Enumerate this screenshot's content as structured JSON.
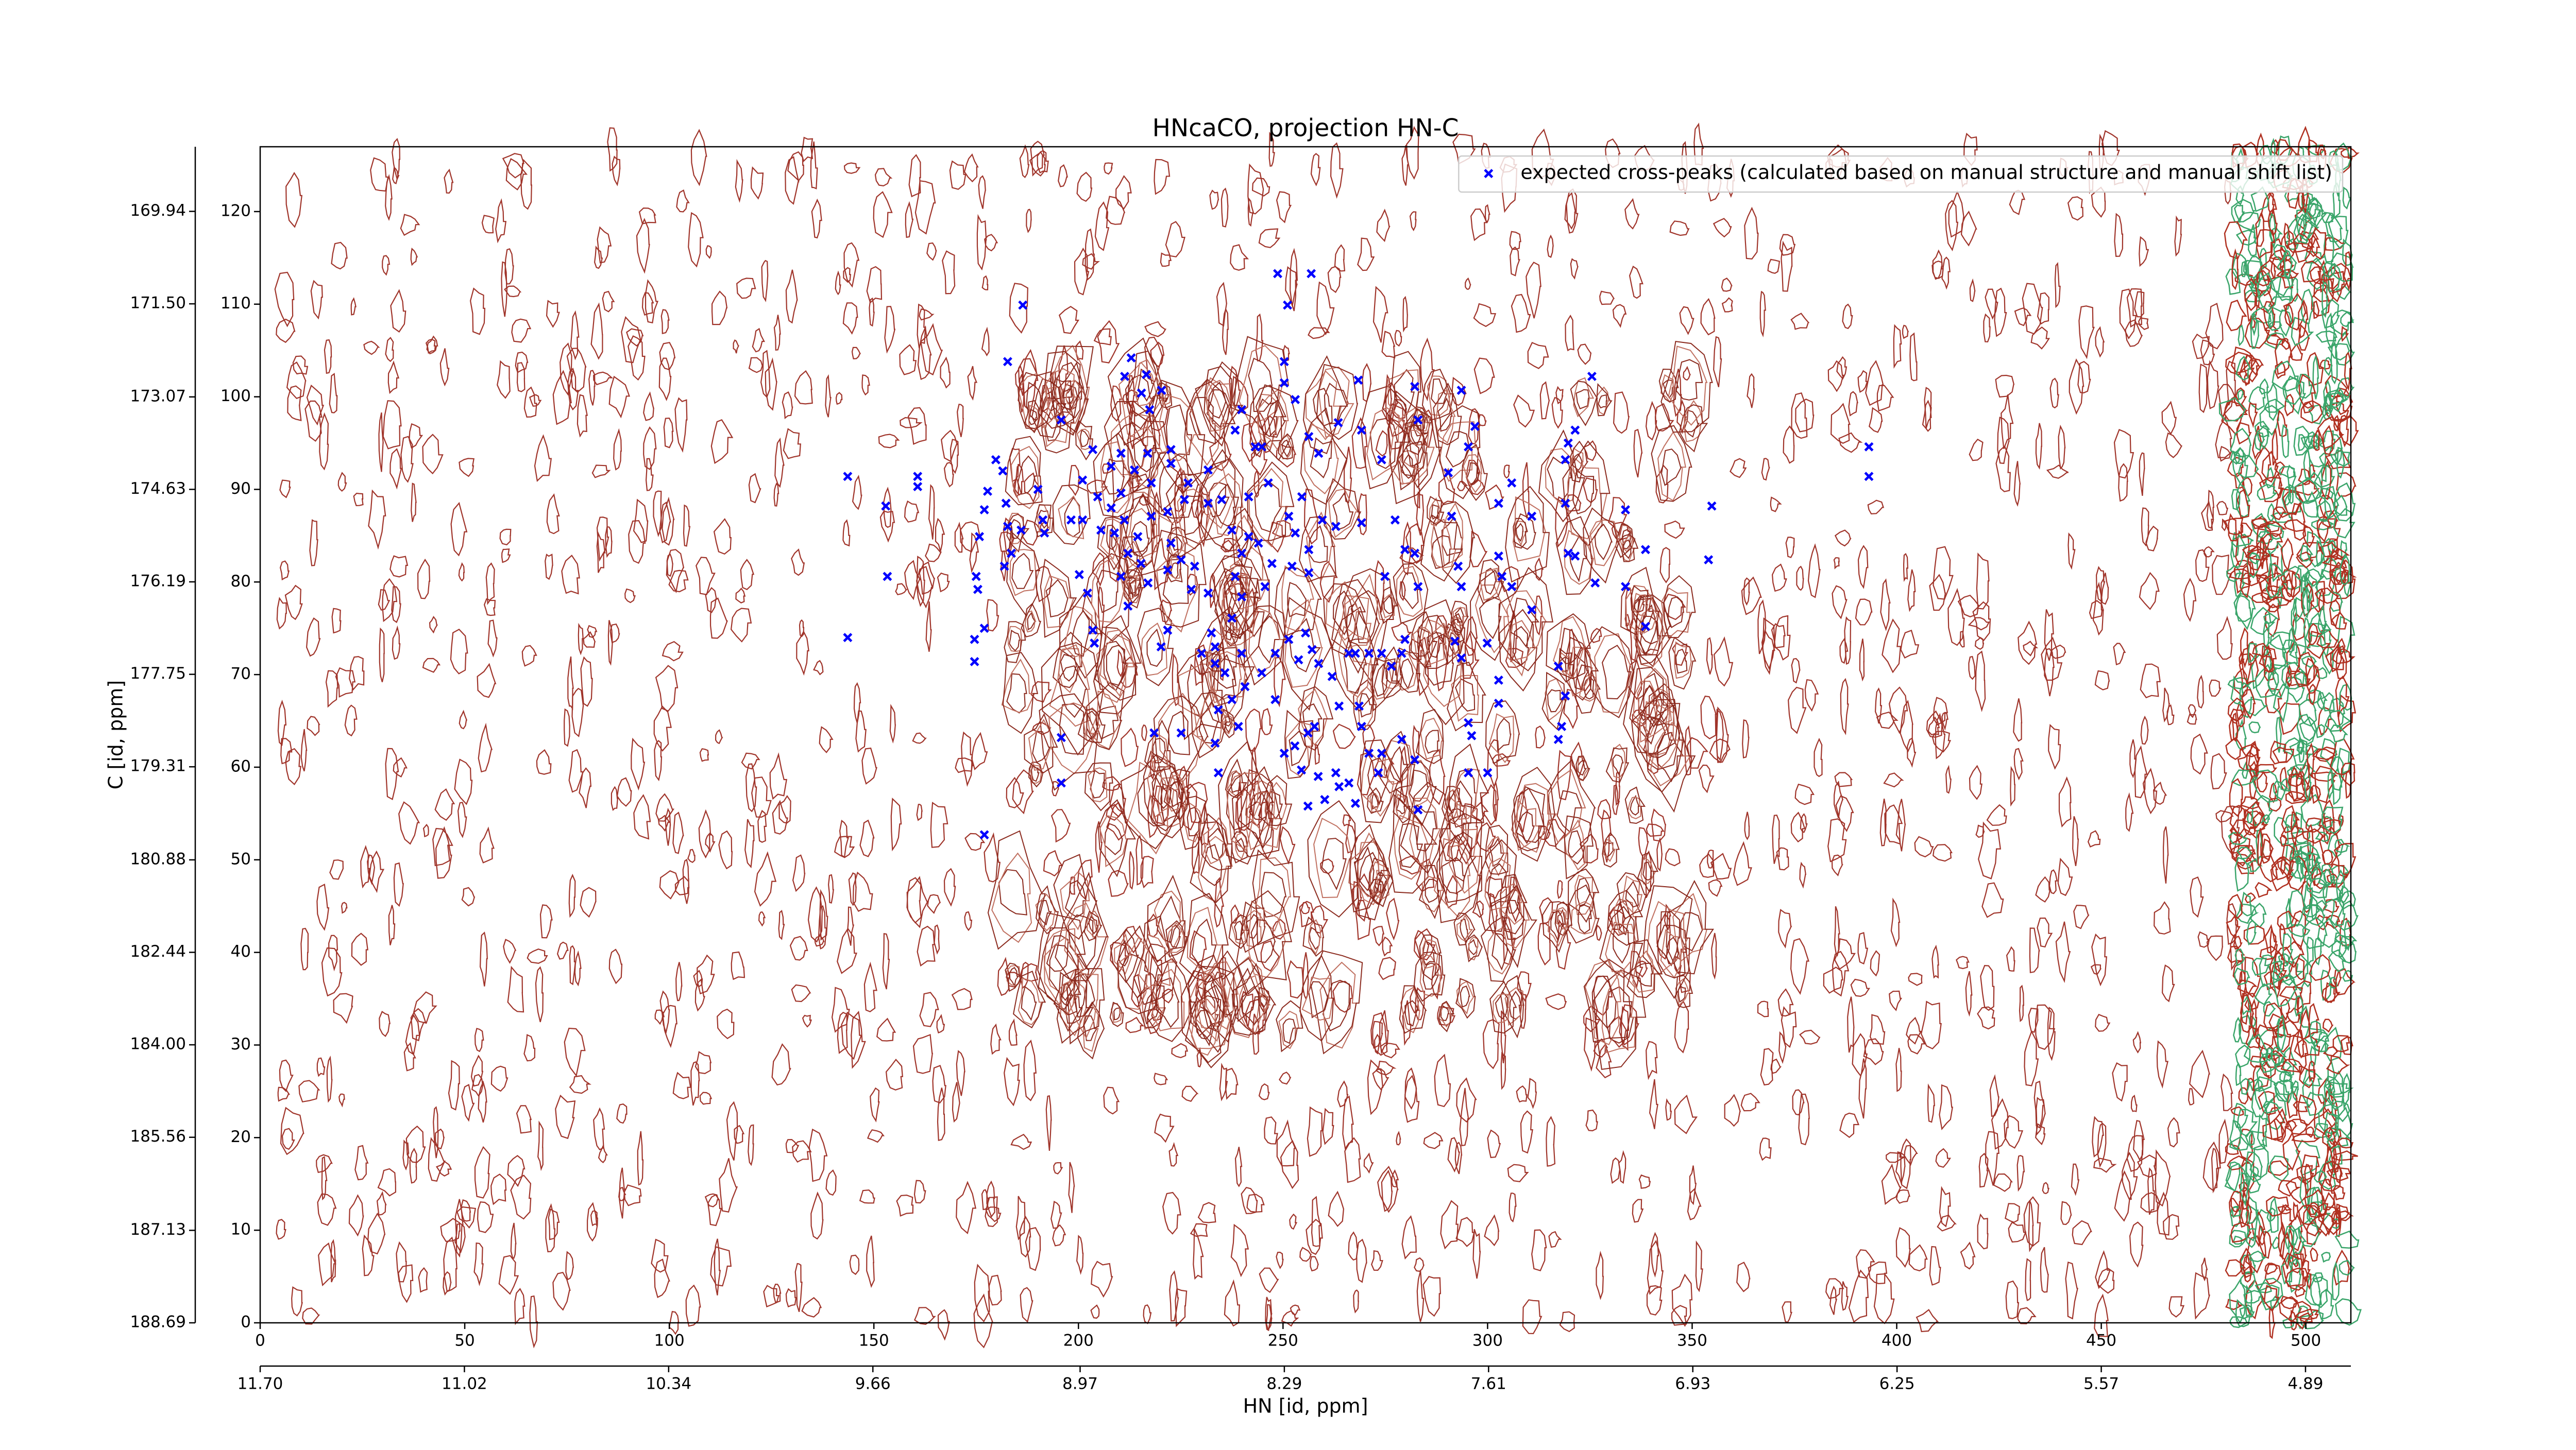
{
  "chart_data": {
    "type": "scatter",
    "title": "HNcaCO, projection HN-C",
    "x_label": "HN [id, ppm]",
    "y_label": "C [id, ppm]",
    "legend": "upper right",
    "xlim": [
      0,
      511
    ],
    "ylim": [
      0,
      127
    ],
    "xticks": [
      0,
      50,
      100,
      150,
      200,
      250,
      300,
      350,
      400,
      450,
      500
    ],
    "yticks": [
      0,
      10,
      20,
      30,
      40,
      50,
      60,
      70,
      80,
      90,
      100,
      110,
      120
    ],
    "x2lim": [
      11.7,
      4.739
    ],
    "x2ticks": [
      {
        "value": 11.7,
        "label": "11.70"
      },
      11.02,
      10.34,
      9.66,
      8.97,
      8.29,
      7.61,
      6.93,
      6.25,
      5.57,
      4.89
    ],
    "y2lim": [
      188.69,
      168.85
    ],
    "y2ticks": [
      188.69,
      187.13,
      185.56,
      {
        "value": 184,
        "label": "184.00"
      },
      182.44,
      180.88,
      179.31,
      177.75,
      176.19,
      174.63,
      173.07,
      {
        "value": 171.5,
        "label": "171.50"
      },
      169.94
    ],
    "x": [
      143.6,
      143.6,
      152.9,
      153.3,
      160.7,
      160.7,
      186.4,
      182.7,
      179.8,
      181.5,
      177.8,
      177,
      175.8,
      182.3,
      182.7,
      175,
      175.4,
      181.9,
      183.6,
      174.6,
      177,
      174.6,
      195.8,
      190.1,
      191.3,
      186,
      191.7,
      195.8,
      195.8,
      177,
      201,
      203.5,
      204.7,
      198.2,
      201,
      205.5,
      208,
      200.2,
      202.2,
      203.5,
      203.9,
      212.9,
      211.3,
      216.6,
      215.4,
      220.3,
      217.4,
      210.4,
      213.7,
      216.9,
      222.6,
      222.6,
      217.8,
      210.4,
      208,
      211.2,
      208.8,
      214.5,
      217.8,
      221.8,
      225.9,
      212.1,
      215.3,
      217,
      210.4,
      212.1,
      222.6,
      225.1,
      228.4,
      221.8,
      227.6,
      231.7,
      226.8,
      231.7,
      231.7,
      235,
      239.9,
      238.3,
      243.2,
      246.4,
      241.6,
      237.5,
      241.6,
      239.9,
      244,
      238.3,
      239.9,
      245.6,
      247.3,
      251.4,
      254.6,
      253,
      256.3,
      252.2,
      256.3,
      259.6,
      262.9,
      248.7,
      256.9,
      251.1,
      250.3,
      250.3,
      253,
      244.8,
      256.3,
      258.7,
      263.5,
      268.4,
      269.2,
      274.1,
      277.4,
      269.2,
      279.8,
      282.2,
      274.9,
      283,
      282.2,
      283,
      293.6,
      296.9,
      295.3,
      290.4,
      291.2,
      292.8,
      293.6,
      305.9,
      302.7,
      310.8,
      302.7,
      303.5,
      305.9,
      310.8,
      319,
      321.4,
      319.7,
      319,
      325.5,
      319.7,
      321.4,
      326.3,
      333.7,
      333.7,
      338.6,
      338.6,
      354.8,
      354,
      393.2,
      393.2,
      237.5,
      233.4,
      233.4,
      235.8,
      234.2,
      237.5,
      240.7,
      239.9,
      244.8,
      248.1,
      248.1,
      251.4,
      255.5,
      253.8,
      257.1,
      258.7,
      262,
      266.1,
      267.7,
      271,
      274.1,
      279,
      279.8,
      276.5,
      263.7,
      268.6,
      269.2,
      257.7,
      256.1,
      252.9,
      250.3,
      254.5,
      258.6,
      262.9,
      263.7,
      266.1,
      256.1,
      260.2,
      267.7,
      271,
      274.1,
      279,
      282.2,
      273.3,
      283,
      233.4,
      234.2,
      239.1,
      225.1,
      218.5,
      232.5,
      230.1,
      221.8,
      220.2,
      295.3,
      296.1,
      302.7,
      302.7,
      295.3,
      300,
      292,
      293.6,
      299.9,
      317.3,
      318.1,
      317.3,
      319
    ],
    "series": [
      {
        "name": "expected cross-peaks (calculated based on manual structure and manual shift list)",
        "color": "#0000ff",
        "values": [
          91.4,
          74,
          88.2,
          80.6,
          91.4,
          90.3,
          109.9,
          103.8,
          93.2,
          92,
          89.8,
          87.8,
          84.9,
          88.5,
          86,
          80.6,
          79.2,
          81.7,
          83.1,
          73.8,
          75,
          71.4,
          97.5,
          90,
          86.7,
          85.6,
          85.3,
          63.2,
          58.3,
          52.7,
          91,
          94.3,
          89.2,
          86.7,
          86.7,
          85.6,
          92.5,
          80.8,
          78.8,
          74.8,
          73.4,
          104.2,
          102.2,
          102.4,
          100.4,
          100.7,
          98.6,
          93.9,
          92.1,
          93.9,
          94.3,
          92.8,
          90.7,
          89.6,
          88,
          86.7,
          85.3,
          84.9,
          87.1,
          87.6,
          88.9,
          83.1,
          82,
          79.9,
          80.6,
          77.4,
          84.2,
          82.4,
          81.7,
          81.3,
          79.2,
          78.8,
          90.7,
          92.1,
          88.5,
          88.9,
          98.6,
          96.4,
          94.6,
          90.7,
          89.2,
          85.6,
          84.9,
          83.1,
          84.2,
          80.6,
          78.4,
          79.5,
          82,
          87.1,
          89.2,
          85.3,
          83.5,
          81.7,
          81,
          86.7,
          86,
          113.3,
          113.3,
          109.9,
          103.8,
          101.5,
          99.7,
          94.6,
          95.7,
          93.9,
          97.2,
          101.8,
          96.4,
          93.2,
          86.7,
          86.4,
          83.5,
          83.1,
          80.6,
          79.5,
          101.1,
          97.5,
          100.7,
          96.8,
          94.6,
          91.8,
          87.1,
          81.7,
          79.5,
          90.7,
          88.5,
          87.1,
          82.8,
          80.6,
          79.5,
          77,
          88.5,
          96.4,
          95,
          93.2,
          102.2,
          83.1,
          82.8,
          79.9,
          79.5,
          87.8,
          83.5,
          75.2,
          88.2,
          82.4,
          94.6,
          91.4,
          76.1,
          73,
          71.2,
          70.2,
          66.2,
          67.3,
          68.7,
          72.3,
          70.2,
          67.3,
          72.3,
          73.8,
          74.5,
          71.6,
          72.7,
          71.2,
          69.8,
          72.3,
          72.3,
          72.3,
          72.3,
          72.3,
          73.8,
          70.9,
          66.6,
          66.6,
          64.4,
          64.4,
          63.7,
          62.3,
          61.5,
          59.7,
          59,
          59.4,
          57.9,
          58.3,
          55.8,
          56.5,
          56.1,
          61.5,
          61.5,
          63,
          60.8,
          59.4,
          55.4,
          62.6,
          59.4,
          64.4,
          63.7,
          63.7,
          74.5,
          72.3,
          74.8,
          73,
          64.8,
          63.4,
          69.4,
          66.9,
          59.4,
          59.4,
          73.6,
          71.8,
          73.4,
          70.9,
          64.4,
          63,
          67.7
        ]
      }
    ]
  }
}
